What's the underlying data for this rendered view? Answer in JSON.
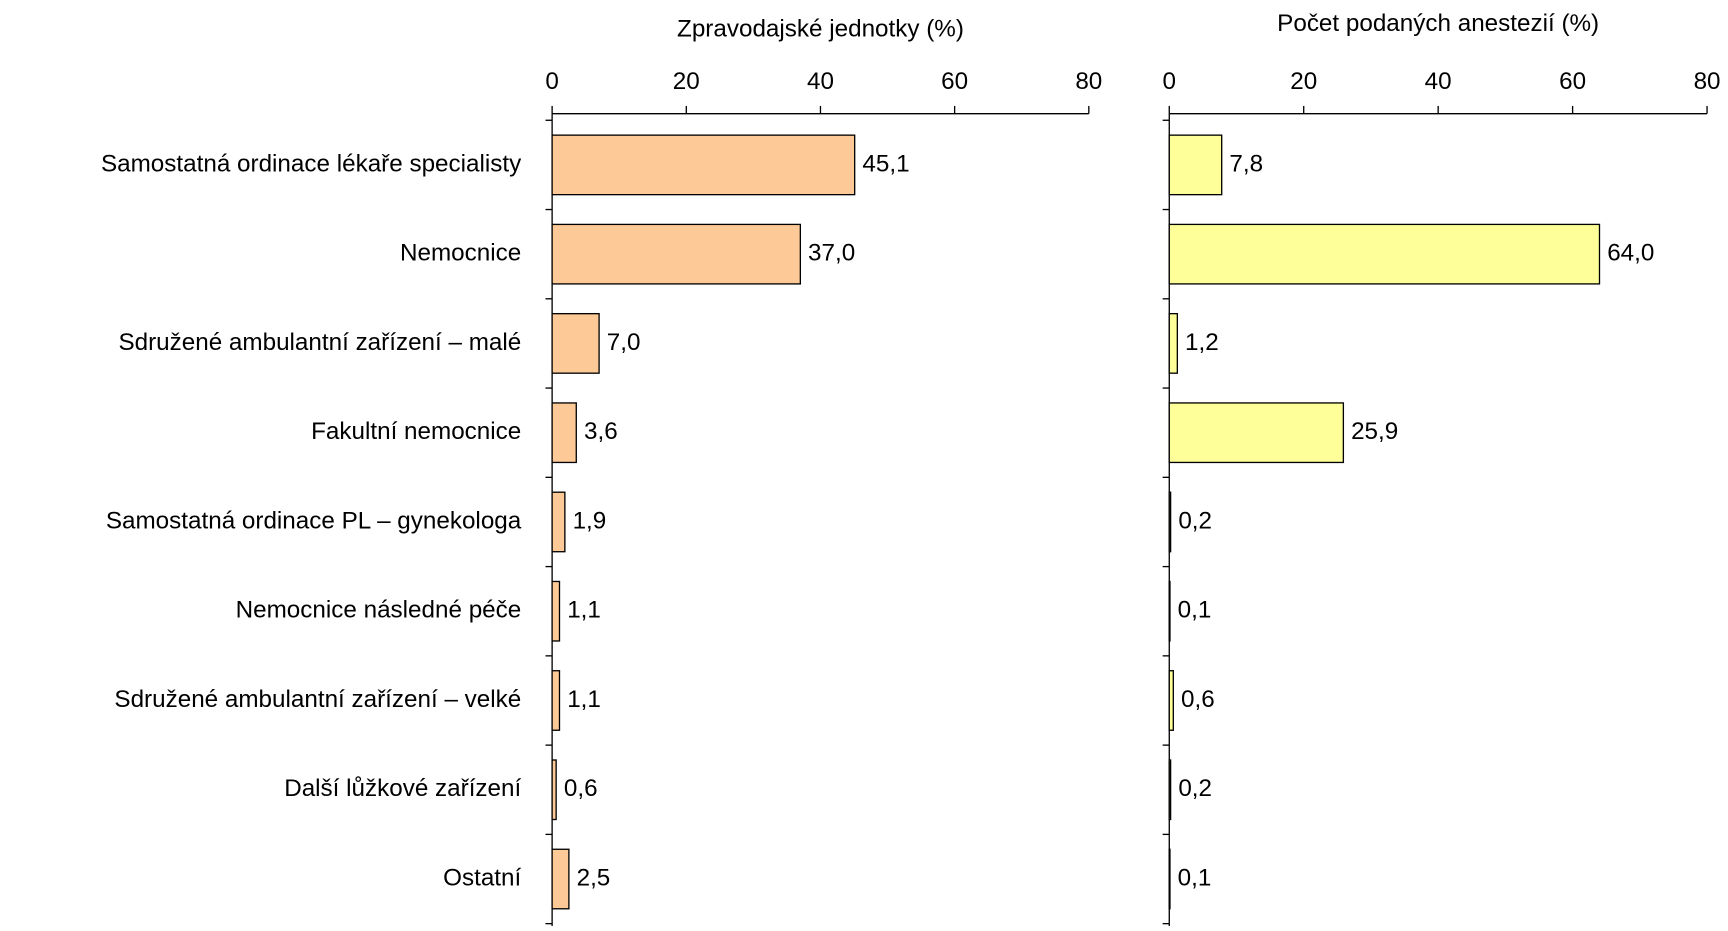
{
  "chart_data": [
    {
      "type": "bar",
      "title": "Zpravodajské jednotky (%)",
      "categories": [
        "Samostatná ordinace lékaře specialisty",
        "Nemocnice",
        "Sdružené ambulantní zařízení – malé",
        "Fakultní nemocnice",
        "Samostatná ordinace PL – gynekologa",
        "Nemocnice následné péče",
        "Sdružené ambulantní zařízení – velké",
        "Další lůžkové zařízení",
        "Ostatní"
      ],
      "values": [
        45.1,
        37.0,
        7.0,
        3.6,
        1.9,
        1.1,
        1.1,
        0.6,
        2.5
      ],
      "value_labels": [
        "45,1",
        "37,0",
        "7,0",
        "3,6",
        "1,9",
        "1,1",
        "1,1",
        "0,6",
        "2,5"
      ],
      "color": "#fdca97",
      "xlim": [
        0,
        80
      ],
      "xticks": [
        0,
        20,
        40,
        60,
        80
      ]
    },
    {
      "type": "bar",
      "title": "Počet podaných anestezií (%)",
      "values": [
        7.8,
        64.0,
        1.2,
        25.9,
        0.2,
        0.1,
        0.6,
        0.2,
        0.1
      ],
      "value_labels": [
        "7,8",
        "64,0",
        "1,2",
        "25,9",
        "0,2",
        "0,1",
        "0,6",
        "0,2",
        "0,1"
      ],
      "color": "#ffff99",
      "xlim": [
        0,
        80
      ],
      "xticks": [
        0,
        20,
        40,
        60,
        80
      ]
    }
  ]
}
